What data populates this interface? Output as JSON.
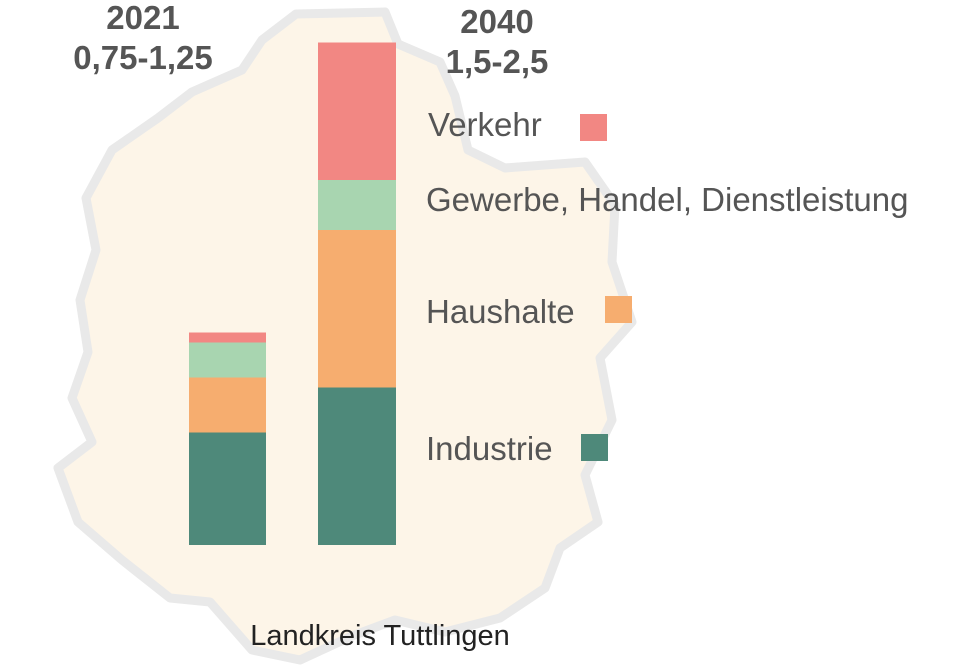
{
  "region": {
    "name": "Landkreis Tuttlingen",
    "fill_color": "#fdf5e8",
    "outline_color": "#e9e9e9"
  },
  "chart_data": {
    "type": "bar",
    "stacked": true,
    "categories": [
      "2021",
      "2040"
    ],
    "category_sublabels": [
      "0,75-1,25",
      "1,5-2,5"
    ],
    "series": [
      {
        "name": "Industrie",
        "color": "#4e897a",
        "values": [
          0.45,
          0.63
        ]
      },
      {
        "name": "Haushalte",
        "color": "#f6ad6f",
        "values": [
          0.22,
          0.63
        ]
      },
      {
        "name": "Gewerbe, Handel, Dienstleistung",
        "color": "#a8d5b0",
        "values": [
          0.14,
          0.2
        ]
      },
      {
        "name": "Verkehr",
        "color": "#f28783",
        "values": [
          0.04,
          0.55
        ]
      }
    ],
    "ylim": [
      0,
      2.02
    ],
    "grid": false,
    "legend_position": "right"
  }
}
